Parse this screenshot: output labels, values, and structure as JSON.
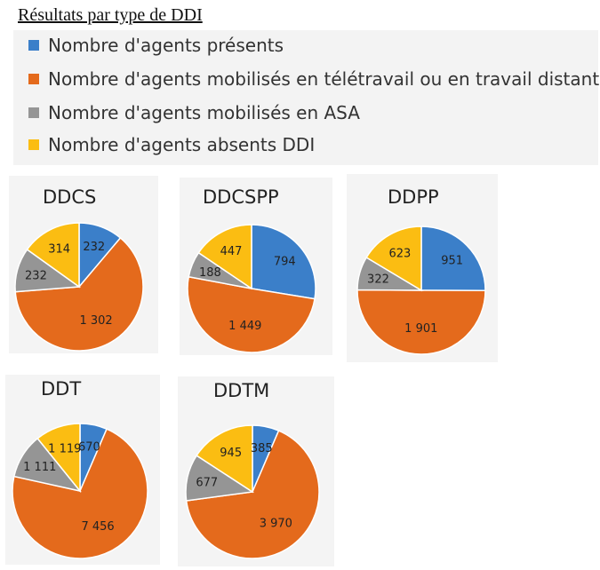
{
  "page_title": "Résultats par type de DDI",
  "legend": [
    {
      "label": "Nombre d'agents présents",
      "color": "#3b7fc9"
    },
    {
      "label": "Nombre d'agents mobilisés en télétravail ou en travail distant",
      "color": "#e46a1c"
    },
    {
      "label": "Nombre d'agents mobilisés en ASA",
      "color": "#959595"
    },
    {
      "label": "Nombre d'agents absents DDI",
      "color": "#fbbd12"
    }
  ],
  "chart_data": [
    {
      "type": "pie",
      "title": "DDCS",
      "categories": [
        "Nombre d'agents présents",
        "Nombre d'agents mobilisés en télétravail ou en travail distant",
        "Nombre d'agents mobilisés en ASA",
        "Nombre d'agents absents DDI"
      ],
      "values": [
        232,
        1302,
        232,
        314
      ],
      "value_labels": [
        "232",
        "1 302",
        "232",
        "314"
      ]
    },
    {
      "type": "pie",
      "title": "DDCSPP",
      "categories": [
        "Nombre d'agents présents",
        "Nombre d'agents mobilisés en télétravail ou en travail distant",
        "Nombre d'agents mobilisés en ASA",
        "Nombre d'agents absents DDI"
      ],
      "values": [
        794,
        1449,
        188,
        447
      ],
      "value_labels": [
        "794",
        "1 449",
        "188",
        "447"
      ]
    },
    {
      "type": "pie",
      "title": "DDPP",
      "categories": [
        "Nombre d'agents présents",
        "Nombre d'agents mobilisés en télétravail ou en travail distant",
        "Nombre d'agents mobilisés en ASA",
        "Nombre d'agents absents DDI"
      ],
      "values": [
        951,
        1901,
        322,
        623
      ],
      "value_labels": [
        "951",
        "1 901",
        "322",
        "623"
      ]
    },
    {
      "type": "pie",
      "title": "DDT",
      "categories": [
        "Nombre d'agents présents",
        "Nombre d'agents mobilisés en télétravail ou en travail distant",
        "Nombre d'agents mobilisés en ASA",
        "Nombre d'agents absents DDI"
      ],
      "values": [
        670,
        7456,
        1111,
        1119
      ],
      "value_labels": [
        "670",
        "7 456",
        "1 111",
        "1 119"
      ]
    },
    {
      "type": "pie",
      "title": "DDTM",
      "categories": [
        "Nombre d'agents présents",
        "Nombre d'agents mobilisés en télétravail ou en travail distant",
        "Nombre d'agents mobilisés en ASA",
        "Nombre d'agents absents DDI"
      ],
      "values": [
        385,
        3970,
        677,
        945
      ],
      "value_labels": [
        "385",
        "3 970",
        "677",
        "945"
      ]
    }
  ]
}
